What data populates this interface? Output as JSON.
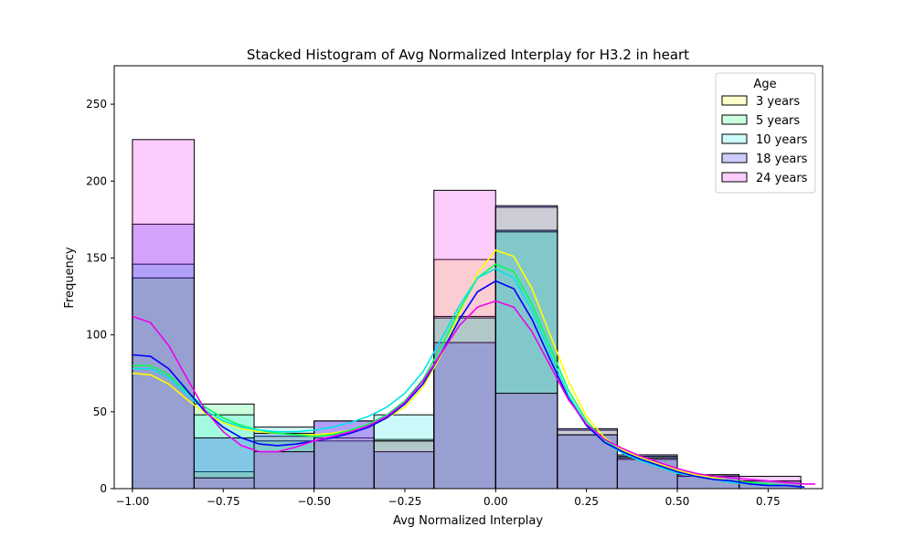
{
  "chart_data": {
    "type": "histogram",
    "title": "Stacked Histogram of Avg Normalized  Interplay for H3.2 in heart",
    "xlabel": "Avg Normalized Interplay",
    "ylabel": "Frequency",
    "xlim": [
      -1.05,
      0.9
    ],
    "ylim": [
      0,
      275
    ],
    "x_ticks": [
      -1.0,
      -0.75,
      -0.5,
      -0.25,
      0.0,
      0.25,
      0.5,
      0.75
    ],
    "x_tick_labels": [
      "−1.00",
      "−0.75",
      "−0.50",
      "−0.25",
      "0.00",
      "0.25",
      "0.50",
      "0.75"
    ],
    "y_ticks": [
      0,
      50,
      100,
      150,
      200,
      250
    ],
    "y_tick_labels": [
      "0",
      "50",
      "100",
      "150",
      "200",
      "250"
    ],
    "legend": {
      "title": "Age",
      "position": "top-right"
    },
    "series": [
      {
        "name": "3 years",
        "color": "#ffff00",
        "bins": [
          [
            -1.0,
            -0.83,
            137
          ],
          [
            -0.83,
            -0.665,
            11
          ],
          [
            -0.665,
            -0.5,
            34
          ],
          [
            -0.5,
            -0.335,
            33
          ],
          [
            -0.335,
            -0.17,
            32
          ],
          [
            -0.17,
            0.0,
            149
          ],
          [
            0.0,
            0.17,
            183
          ],
          [
            0.17,
            0.335,
            38
          ],
          [
            0.335,
            0.5,
            21
          ],
          [
            0.5,
            0.67,
            9
          ],
          [
            0.67,
            0.84,
            5
          ]
        ],
        "kde_x": [
          -1.0,
          -0.95,
          -0.9,
          -0.85,
          -0.8,
          -0.75,
          -0.7,
          -0.65,
          -0.6,
          -0.55,
          -0.5,
          -0.45,
          -0.4,
          -0.35,
          -0.3,
          -0.25,
          -0.2,
          -0.15,
          -0.1,
          -0.05,
          0.0,
          0.05,
          0.1,
          0.15,
          0.2,
          0.25,
          0.3,
          0.35,
          0.4,
          0.45,
          0.5,
          0.55,
          0.6,
          0.65,
          0.7,
          0.75,
          0.8,
          0.85
        ],
        "kde_y": [
          75,
          74,
          68,
          58,
          49,
          43,
          39,
          37,
          36,
          35,
          35,
          36,
          38,
          41,
          46,
          53,
          66,
          87,
          114,
          140,
          155,
          151,
          130,
          100,
          70,
          47,
          33,
          25,
          20,
          16,
          12,
          9,
          7,
          5,
          4,
          3,
          2,
          1
        ]
      },
      {
        "name": "5 years",
        "color": "#00ff55",
        "bins": [
          [
            -1.0,
            -0.83,
            137
          ],
          [
            -0.83,
            -0.665,
            55
          ],
          [
            -0.665,
            -0.5,
            31
          ],
          [
            -0.5,
            -0.335,
            31
          ],
          [
            -0.335,
            -0.17,
            31
          ],
          [
            -0.17,
            0.0,
            112
          ],
          [
            0.0,
            0.17,
            168
          ],
          [
            0.17,
            0.335,
            35
          ],
          [
            0.335,
            0.5,
            21
          ],
          [
            0.5,
            0.67,
            8
          ],
          [
            0.67,
            0.84,
            5
          ]
        ],
        "kde_x": [
          -1.0,
          -0.95,
          -0.9,
          -0.85,
          -0.8,
          -0.75,
          -0.7,
          -0.65,
          -0.6,
          -0.55,
          -0.5,
          -0.45,
          -0.4,
          -0.35,
          -0.3,
          -0.25,
          -0.2,
          -0.15,
          -0.1,
          -0.05,
          0.0,
          0.05,
          0.1,
          0.15,
          0.2,
          0.25,
          0.3,
          0.35,
          0.4,
          0.45,
          0.5,
          0.55,
          0.6,
          0.65,
          0.7,
          0.75,
          0.8,
          0.85
        ],
        "kde_y": [
          80,
          80,
          74,
          63,
          53,
          46,
          41,
          38,
          36,
          35,
          34,
          35,
          38,
          42,
          48,
          57,
          71,
          92,
          116,
          137,
          146,
          141,
          120,
          92,
          64,
          44,
          31,
          24,
          19,
          15,
          11,
          8,
          6,
          5,
          4,
          3,
          2,
          1
        ]
      },
      {
        "name": "10 years",
        "color": "#00e5e5",
        "bins": [
          [
            -1.0,
            -0.83,
            146
          ],
          [
            -0.83,
            -0.665,
            48
          ],
          [
            -0.665,
            -0.5,
            40
          ],
          [
            -0.5,
            -0.335,
            44
          ],
          [
            -0.335,
            -0.17,
            48
          ],
          [
            -0.17,
            0.0,
            111
          ],
          [
            0.0,
            0.17,
            167
          ],
          [
            0.17,
            0.335,
            35
          ],
          [
            0.335,
            0.5,
            19
          ],
          [
            0.5,
            0.67,
            8
          ],
          [
            0.67,
            0.84,
            5
          ]
        ],
        "kde_x": [
          -1.0,
          -0.95,
          -0.9,
          -0.85,
          -0.8,
          -0.75,
          -0.7,
          -0.65,
          -0.6,
          -0.55,
          -0.5,
          -0.45,
          -0.4,
          -0.35,
          -0.3,
          -0.25,
          -0.2,
          -0.15,
          -0.1,
          -0.05,
          0.0,
          0.05,
          0.1,
          0.15,
          0.2,
          0.25,
          0.3,
          0.35,
          0.4,
          0.45,
          0.5,
          0.55,
          0.6,
          0.65,
          0.7,
          0.75,
          0.8,
          0.85
        ],
        "kde_y": [
          78,
          78,
          72,
          61,
          51,
          44,
          40,
          38,
          37,
          37,
          38,
          40,
          43,
          47,
          53,
          62,
          76,
          97,
          119,
          137,
          143,
          137,
          116,
          88,
          61,
          42,
          30,
          23,
          18,
          14,
          10,
          8,
          6,
          4,
          3,
          2,
          2,
          1
        ]
      },
      {
        "name": "18 years",
        "color": "#0000ff",
        "bins": [
          [
            -1.0,
            -0.83,
            172
          ],
          [
            -0.83,
            -0.665,
            33
          ],
          [
            -0.665,
            -0.5,
            36
          ],
          [
            -0.5,
            -0.335,
            44
          ],
          [
            -0.335,
            -0.17,
            24
          ],
          [
            -0.17,
            0.0,
            95
          ],
          [
            0.0,
            0.17,
            184
          ],
          [
            0.17,
            0.335,
            39
          ],
          [
            0.335,
            0.5,
            22
          ],
          [
            0.5,
            0.67,
            9
          ],
          [
            0.67,
            0.84,
            5
          ]
        ],
        "kde_x": [
          -1.0,
          -0.95,
          -0.9,
          -0.85,
          -0.8,
          -0.75,
          -0.7,
          -0.65,
          -0.6,
          -0.55,
          -0.5,
          -0.45,
          -0.4,
          -0.35,
          -0.3,
          -0.25,
          -0.2,
          -0.15,
          -0.1,
          -0.05,
          0.0,
          0.05,
          0.1,
          0.15,
          0.2,
          0.25,
          0.3,
          0.35,
          0.4,
          0.45,
          0.5,
          0.55,
          0.6,
          0.65,
          0.7,
          0.75,
          0.8,
          0.85
        ],
        "kde_y": [
          87,
          86,
          78,
          64,
          50,
          40,
          33,
          29,
          28,
          29,
          31,
          33,
          36,
          40,
          46,
          55,
          68,
          88,
          110,
          128,
          135,
          130,
          110,
          84,
          59,
          41,
          30,
          24,
          19,
          15,
          11,
          8,
          6,
          5,
          3,
          2,
          2,
          1
        ]
      },
      {
        "name": "24 years",
        "color": "#ee00ee",
        "bins": [
          [
            -1.0,
            -0.83,
            227
          ],
          [
            -0.83,
            -0.665,
            7
          ],
          [
            -0.665,
            -0.5,
            24
          ],
          [
            -0.5,
            -0.335,
            44
          ],
          [
            -0.335,
            -0.17,
            31
          ],
          [
            -0.17,
            0.0,
            194
          ],
          [
            0.0,
            0.17,
            62
          ],
          [
            0.17,
            0.335,
            35
          ],
          [
            0.335,
            0.5,
            20
          ],
          [
            0.5,
            0.67,
            9
          ],
          [
            0.67,
            0.84,
            8
          ]
        ],
        "kde_x": [
          -1.0,
          -0.95,
          -0.9,
          -0.85,
          -0.8,
          -0.75,
          -0.7,
          -0.65,
          -0.6,
          -0.55,
          -0.5,
          -0.45,
          -0.4,
          -0.35,
          -0.3,
          -0.25,
          -0.2,
          -0.15,
          -0.1,
          -0.05,
          0.0,
          0.05,
          0.1,
          0.15,
          0.2,
          0.25,
          0.3,
          0.35,
          0.4,
          0.45,
          0.5,
          0.55,
          0.6,
          0.65,
          0.7,
          0.75,
          0.8,
          0.85,
          0.88
        ],
        "kde_y": [
          112,
          108,
          93,
          72,
          51,
          37,
          28,
          24,
          24,
          27,
          31,
          34,
          37,
          41,
          47,
          56,
          70,
          88,
          106,
          118,
          122,
          118,
          102,
          80,
          58,
          42,
          32,
          26,
          21,
          17,
          13,
          10,
          8,
          7,
          6,
          5,
          4,
          3,
          3
        ]
      }
    ],
    "grid": false
  }
}
